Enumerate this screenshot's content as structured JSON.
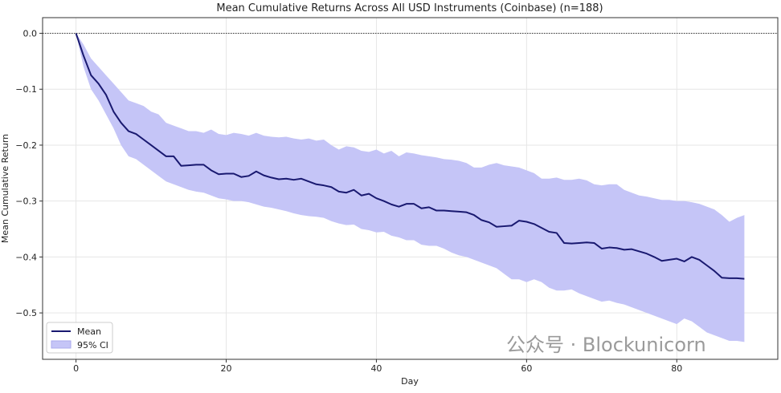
{
  "chart_data": {
    "type": "line",
    "title": "Mean Cumulative Returns Across All USD Instruments (Coinbase) (n=188)",
    "xlabel": "Day",
    "ylabel": "Mean Cumulative Return",
    "xlim": [
      -4.45,
      93.45
    ],
    "ylim": [
      -0.583,
      0.028
    ],
    "xticks": [
      0,
      20,
      40,
      60,
      80
    ],
    "xtick_labels": [
      "0",
      "20",
      "40",
      "60",
      "80"
    ],
    "yticks": [
      0.0,
      -0.1,
      -0.2,
      -0.3,
      -0.4,
      -0.5
    ],
    "ytick_labels": [
      "0.0",
      "−0.1",
      "−0.2",
      "−0.3",
      "−0.4",
      "−0.5"
    ],
    "grid": true,
    "legend_placement": "bottom-left",
    "reference_line": {
      "y": 0,
      "style": "dotted",
      "color": "#000000"
    },
    "series": [
      {
        "name": "Mean",
        "type": "line",
        "color": "#191970",
        "values": [
          0,
          -0.04,
          -0.075,
          -0.09,
          -0.11,
          -0.14,
          -0.16,
          -0.175,
          -0.18,
          -0.19,
          -0.2,
          -0.21,
          -0.22,
          -0.22,
          -0.237,
          -0.236,
          -0.235,
          -0.235,
          -0.245,
          -0.252,
          -0.251,
          -0.251,
          -0.257,
          -0.255,
          -0.247,
          -0.254,
          -0.258,
          -0.261,
          -0.26,
          -0.262,
          -0.26,
          -0.265,
          -0.27,
          -0.272,
          -0.275,
          -0.283,
          -0.285,
          -0.28,
          -0.29,
          -0.287,
          -0.295,
          -0.3,
          -0.306,
          -0.31,
          -0.305,
          -0.305,
          -0.313,
          -0.311,
          -0.317,
          -0.317,
          -0.318,
          -0.319,
          -0.32,
          -0.325,
          -0.334,
          -0.338,
          -0.346,
          -0.345,
          -0.344,
          -0.335,
          -0.337,
          -0.341,
          -0.348,
          -0.355,
          -0.357,
          -0.375,
          -0.376,
          -0.375,
          -0.374,
          -0.375,
          -0.385,
          -0.383,
          -0.384,
          -0.387,
          -0.386,
          -0.39,
          -0.394,
          -0.4,
          -0.407,
          -0.405,
          -0.403,
          -0.408,
          -0.4,
          -0.405,
          -0.415,
          -0.425,
          -0.437,
          -0.438,
          -0.438,
          -0.439
        ]
      },
      {
        "name": "95% CI",
        "type": "band",
        "color": "#c5c5f7",
        "upper": [
          0,
          -0.02,
          -0.045,
          -0.06,
          -0.075,
          -0.09,
          -0.105,
          -0.12,
          -0.125,
          -0.13,
          -0.14,
          -0.145,
          -0.16,
          -0.165,
          -0.17,
          -0.175,
          -0.175,
          -0.178,
          -0.172,
          -0.18,
          -0.182,
          -0.178,
          -0.18,
          -0.183,
          -0.178,
          -0.183,
          -0.185,
          -0.186,
          -0.185,
          -0.188,
          -0.19,
          -0.188,
          -0.192,
          -0.19,
          -0.2,
          -0.208,
          -0.202,
          -0.204,
          -0.21,
          -0.212,
          -0.208,
          -0.215,
          -0.21,
          -0.22,
          -0.213,
          -0.215,
          -0.218,
          -0.22,
          -0.222,
          -0.225,
          -0.226,
          -0.228,
          -0.232,
          -0.24,
          -0.24,
          -0.235,
          -0.232,
          -0.236,
          -0.238,
          -0.24,
          -0.245,
          -0.25,
          -0.26,
          -0.26,
          -0.258,
          -0.262,
          -0.262,
          -0.26,
          -0.263,
          -0.27,
          -0.272,
          -0.27,
          -0.27,
          -0.28,
          -0.285,
          -0.29,
          -0.292,
          -0.295,
          -0.298,
          -0.298,
          -0.3,
          -0.3,
          -0.302,
          -0.305,
          -0.31,
          -0.315,
          -0.325,
          -0.337,
          -0.33,
          -0.325
        ],
        "lower": [
          0,
          -0.06,
          -0.1,
          -0.12,
          -0.145,
          -0.17,
          -0.2,
          -0.22,
          -0.225,
          -0.235,
          -0.245,
          -0.255,
          -0.265,
          -0.27,
          -0.275,
          -0.28,
          -0.283,
          -0.285,
          -0.29,
          -0.295,
          -0.297,
          -0.3,
          -0.3,
          -0.302,
          -0.306,
          -0.31,
          -0.312,
          -0.315,
          -0.318,
          -0.322,
          -0.325,
          -0.327,
          -0.328,
          -0.33,
          -0.336,
          -0.34,
          -0.343,
          -0.342,
          -0.35,
          -0.352,
          -0.356,
          -0.355,
          -0.362,
          -0.365,
          -0.37,
          -0.37,
          -0.378,
          -0.38,
          -0.38,
          -0.385,
          -0.392,
          -0.397,
          -0.4,
          -0.405,
          -0.41,
          -0.415,
          -0.42,
          -0.43,
          -0.44,
          -0.44,
          -0.445,
          -0.44,
          -0.445,
          -0.455,
          -0.46,
          -0.46,
          -0.458,
          -0.465,
          -0.47,
          -0.475,
          -0.48,
          -0.478,
          -0.482,
          -0.485,
          -0.49,
          -0.495,
          -0.5,
          -0.505,
          -0.51,
          -0.515,
          -0.52,
          -0.51,
          -0.515,
          -0.525,
          -0.535,
          -0.54,
          -0.545,
          -0.55,
          -0.55,
          -0.552
        ]
      }
    ],
    "legend": [
      "Mean",
      "95% CI"
    ]
  },
  "watermark": "公众号 · Blockunicorn"
}
